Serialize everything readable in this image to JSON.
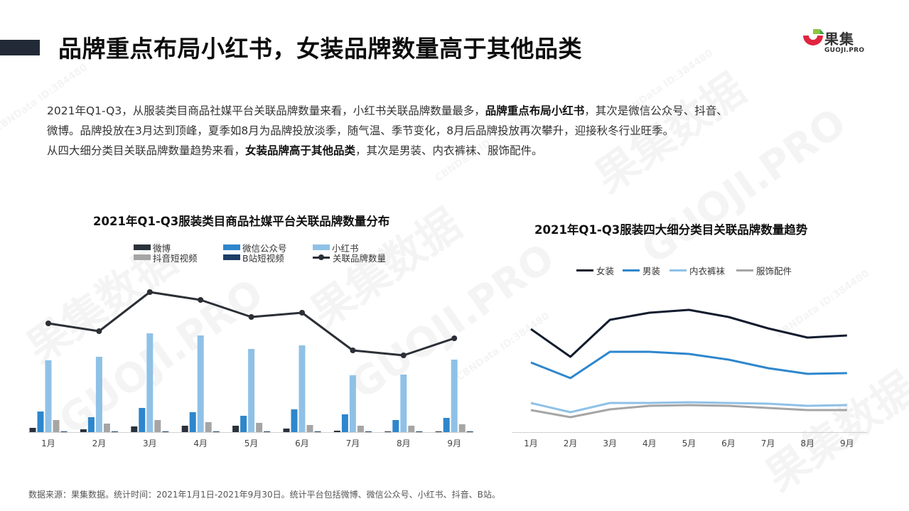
{
  "header": {
    "title": "品牌重点布局小红书，女装品牌数量高于其他品类",
    "accent_color": "#212a36"
  },
  "logo": {
    "name": "果集",
    "sub": "GUOJI.PRO",
    "colors": {
      "red": "#e0253f",
      "green": "#8dc63f"
    }
  },
  "summary": {
    "line1_pre": "2021年Q1-Q3，从服装类目商品社媒平台关联品牌数量来看，小红书关联品牌数量最多，",
    "line1_bold": "品牌重点布局小红书",
    "line1_post": "，其次是微信公众号、抖音、",
    "line2": "微博。品牌投放在3月达到顶峰，夏季如8月为品牌投放淡季，随气温、季节变化，8月后品牌投放再次攀升，迎接秋冬行业旺季。",
    "line3_pre": "从四大细分类目关联品牌数量趋势来看，",
    "line3_bold": "女装品牌高于其他品类",
    "line3_post": "，其次是男装、内衣裤袜、服饰配件。"
  },
  "chart_data": [
    {
      "type": "bar",
      "title": "2021年Q1-Q3服装类目商品社媒平台关联品牌数量分布",
      "categories": [
        "1月",
        "2月",
        "3月",
        "4月",
        "5月",
        "6月",
        "7月",
        "8月",
        "9月"
      ],
      "xlabel": "",
      "ylabel": "",
      "grid": false,
      "legend_position": "top",
      "note": "No y-axis shown; values are relative pixel heights above baseline (larger = more brands).",
      "series": [
        {
          "name": "微博",
          "type": "bar",
          "color": "#2b313b",
          "values": [
            6,
            4,
            8,
            9,
            9,
            5,
            2,
            1,
            1
          ]
        },
        {
          "name": "微信公众号",
          "type": "bar",
          "color": "#2e86cc",
          "values": [
            29,
            21,
            34,
            28,
            23,
            32,
            25,
            17,
            20
          ]
        },
        {
          "name": "小红书",
          "type": "bar",
          "color": "#8fc1e6",
          "values": [
            101,
            106,
            139,
            136,
            117,
            122,
            80,
            81,
            102
          ]
        },
        {
          "name": "抖音短视频",
          "type": "bar",
          "color": "#a5a5a5",
          "values": [
            17,
            12,
            17,
            14,
            13,
            10,
            9,
            9,
            11
          ]
        },
        {
          "name": "B站短视频",
          "type": "bar",
          "color": "#1b3d66",
          "values": [
            1,
            1,
            1,
            1,
            1,
            1,
            1,
            1,
            1
          ]
        },
        {
          "name": "关联品牌数量",
          "type": "line",
          "color": "#2b2f36",
          "values": [
            153,
            142,
            197,
            186,
            162,
            168,
            115,
            108,
            132
          ]
        }
      ]
    },
    {
      "type": "line",
      "title": "2021年Q1-Q3服装四大细分类目关联品牌数量趋势",
      "categories": [
        "1月",
        "2月",
        "3月",
        "4月",
        "5月",
        "6月",
        "7月",
        "8月",
        "9月"
      ],
      "xlabel": "",
      "ylabel": "",
      "grid": false,
      "legend_position": "top",
      "note": "No y-axis shown; values are relative pixel heights above baseline.",
      "series": [
        {
          "name": "女装",
          "color": "#121c2e",
          "values": [
            145,
            106,
            158,
            168,
            172,
            162,
            146,
            133,
            136
          ]
        },
        {
          "name": "男装",
          "color": "#2e86cc",
          "values": [
            98,
            76,
            113,
            113,
            110,
            102,
            90,
            82,
            83
          ]
        },
        {
          "name": "内衣裤袜",
          "color": "#8fc1e6",
          "values": [
            41,
            28,
            41,
            41,
            42,
            41,
            40,
            37,
            38
          ]
        },
        {
          "name": "服饰配件",
          "color": "#a5a5a5",
          "values": [
            31,
            21,
            32,
            37,
            38,
            37,
            34,
            31,
            31
          ]
        }
      ]
    }
  ],
  "charts": {
    "bar": {
      "title": "2021年Q1-Q3服装类目商品社媒平台关联品牌数量分布",
      "legend": [
        "微博",
        "微信公众号",
        "小红书",
        "抖音短视频",
        "B站短视频",
        "关联品牌数量"
      ],
      "months": [
        "1月",
        "2月",
        "3月",
        "4月",
        "5月",
        "6月",
        "7月",
        "8月",
        "9月"
      ]
    },
    "line": {
      "title": "2021年Q1-Q3服装四大细分类目关联品牌数量趋势",
      "legend": [
        "女装",
        "男装",
        "内衣裤袜",
        "服饰配件"
      ],
      "months": [
        "1月",
        "2月",
        "3月",
        "4月",
        "5月",
        "6月",
        "7月",
        "8月",
        "9月"
      ]
    }
  },
  "footer": {
    "source": "数据来源：果集数据。统计时间：2021年1月1日-2021年9月30日。统计平台包括微博、微信公众号、小红书、抖音、B站。"
  },
  "watermark": {
    "brand": "果集数据",
    "domain": "GUOJI.PRO",
    "id": "CBNData ID:384480"
  }
}
